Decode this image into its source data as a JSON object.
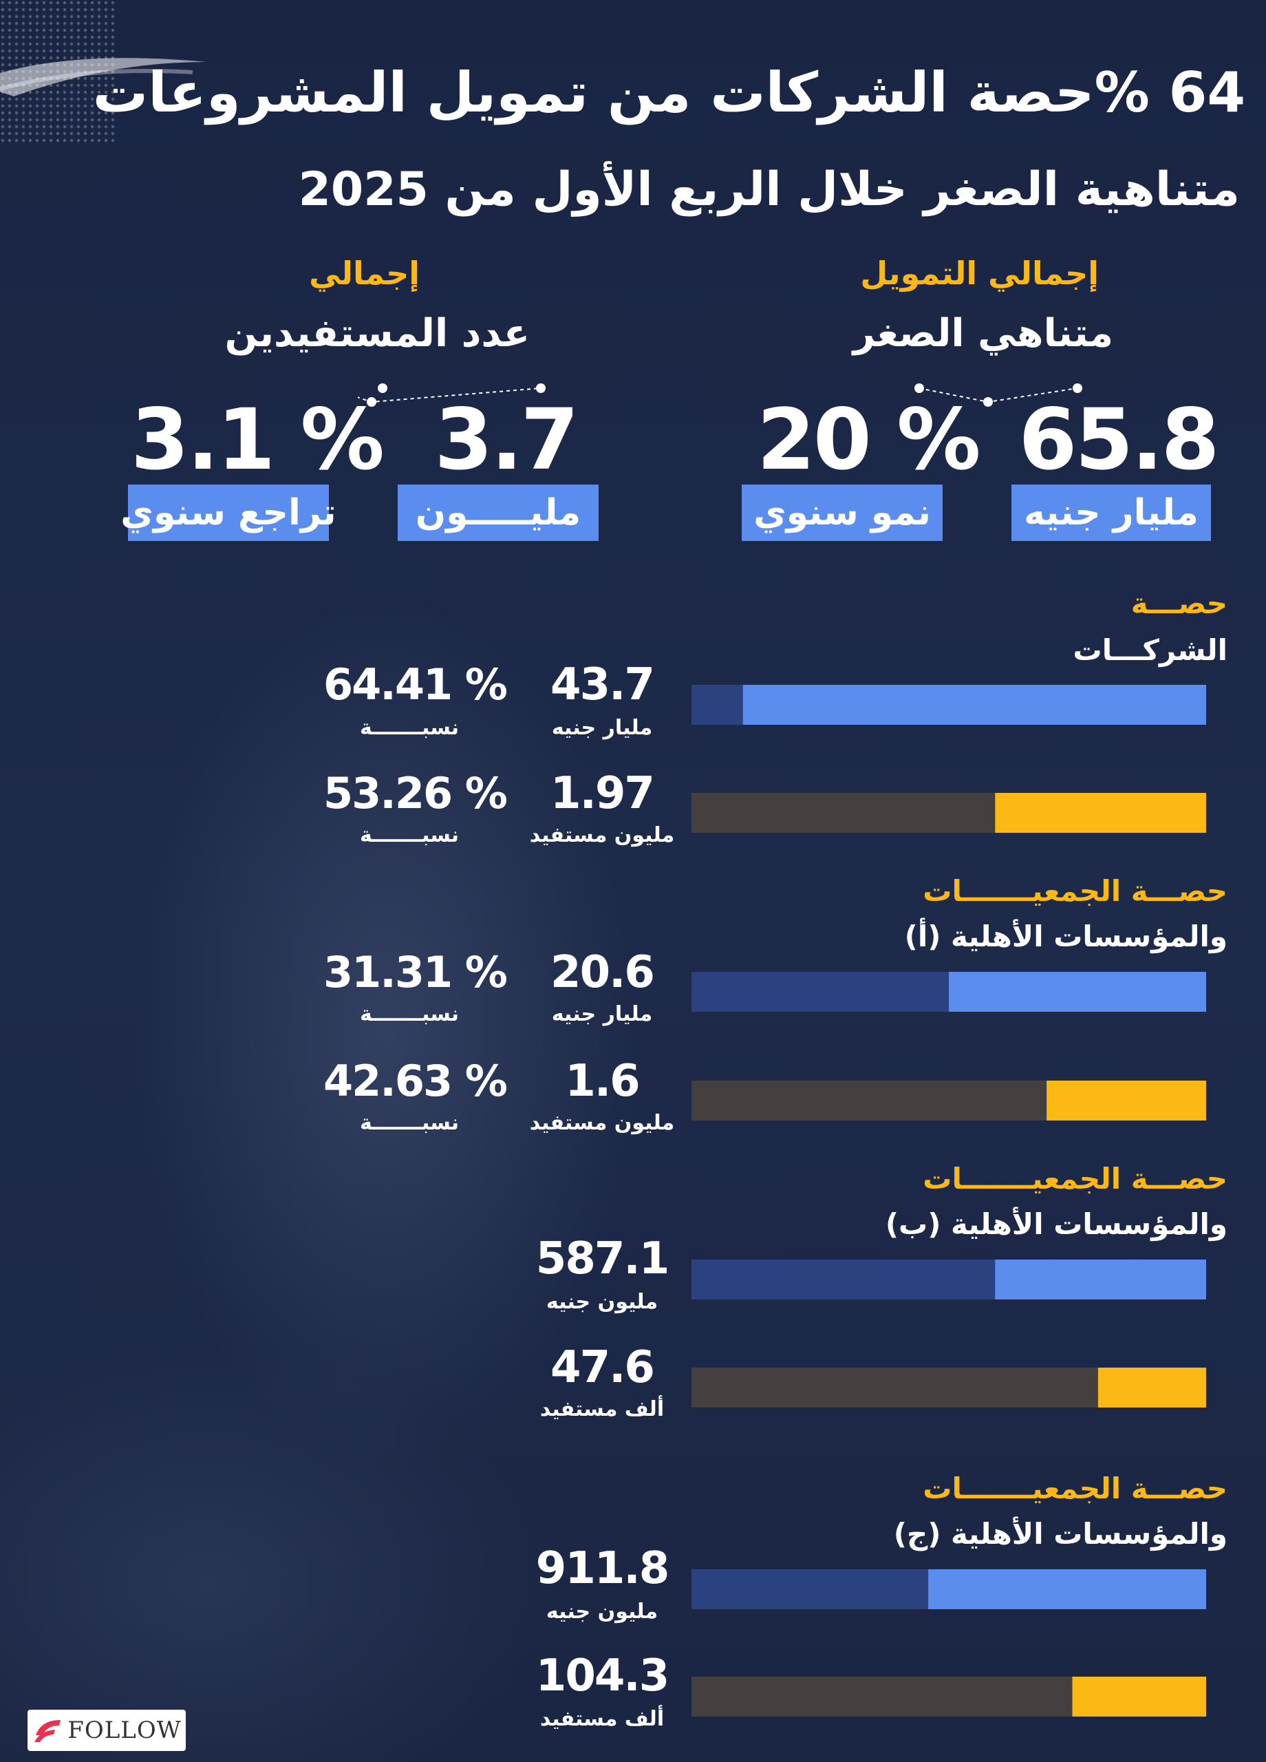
{
  "header": {
    "title_line1": "64 %حصة الشركات من تمويل المشروعات",
    "title_line2": "متناهية الصغر خلال الربع الأول من 2025"
  },
  "summary": {
    "funding": {
      "heading_small": "إجمالي التمويل",
      "heading_big": "متناهي الصغر",
      "value": "65.8",
      "unit": "مليار جنيه",
      "growth_value": "20 %",
      "growth_label": "نمو سنوي"
    },
    "beneficiaries": {
      "heading_small": "إجمالي",
      "heading_big": "عدد المستفيدين",
      "value": "3.7",
      "unit": "مليـــــون",
      "decline_value": "3.1 %",
      "decline_label": "تراجع سنوي"
    }
  },
  "sections": [
    {
      "title_small": "حصـــة",
      "title_big": "الشركـــات",
      "funding_value": "43.7",
      "funding_unit": "مليار جنيه",
      "funding_share_text": "64.41 %",
      "funding_share_label": "نسبـــــــة",
      "beneficiaries_value": "1.97",
      "beneficiaries_unit": "مليون مستفيد",
      "beneficiaries_share_text": "53.26 %",
      "beneficiaries_share_label": "نسبـــــــة"
    },
    {
      "title_small": "حصـــة الجمعيـــــــات",
      "title_big": "والمؤسسات الأهلية (أ)",
      "funding_value": "20.6",
      "funding_unit": "مليار جنيه",
      "funding_share_text": "31.31 %",
      "funding_share_label": "نسبـــــــة",
      "beneficiaries_value": "1.6",
      "beneficiaries_unit": "مليون مستفيد",
      "beneficiaries_share_text": "42.63 %",
      "beneficiaries_share_label": "نسبـــــــة"
    },
    {
      "title_small": "حصـــة الجمعيـــــــات",
      "title_big": "والمؤسسات الأهلية (ب)",
      "funding_value": "587.1",
      "funding_unit": "مليون جنيه",
      "beneficiaries_value": "47.6",
      "beneficiaries_unit": "ألف مستفيد"
    },
    {
      "title_small": "حصـــة الجمعيـــــــات",
      "title_big": "والمؤسسات الأهلية (ج)",
      "funding_value": "911.8",
      "funding_unit": "مليون جنيه",
      "beneficiaries_value": "104.3",
      "beneficiaries_unit": "ألف مستفيد"
    }
  ],
  "chart_data": {
    "type": "bar",
    "orientation": "horizontal",
    "categories": [
      "الشركات",
      "الجمعيات والمؤسسات الأهلية (أ)",
      "الجمعيات والمؤسسات الأهلية (ب)",
      "الجمعيات والمؤسسات الأهلية (ج)"
    ],
    "series": [
      {
        "name": "",
        "unit_per_category": [
          "مليار جنيه",
          "مليار جنيه",
          "مليون جنيه",
          "مليون جنيه"
        ],
        "values": [
          43.7,
          20.6,
          587.1,
          911.8
        ],
        "bar_fill_fraction": [
          0.9,
          0.5,
          0.41,
          0.54
        ]
      },
      {
        "name": "",
        "unit_per_category": [
          "مليون مستفيد",
          "مليون مستفيد",
          "ألف مستفيد",
          "ألف مستفيد"
        ],
        "values": [
          1.97,
          1.6,
          47.6,
          104.3
        ],
        "bar_fill_fraction": [
          0.41,
          0.31,
          0.21,
          0.26
        ]
      }
    ],
    "shares_percent": {
      "funding": [
        64.41,
        31.31
      ],
      "beneficiaries": [
        53.26,
        42.63
      ]
    },
    "grid": false,
    "legend": "none"
  },
  "colors": {
    "background": "#1c2745",
    "accent_yellow": "#fdb913",
    "accent_blue": "#5b8def",
    "track_blue": "#2b4281",
    "track_yellow": "#453f3f"
  },
  "logo": {
    "text": "FOLLOW"
  }
}
